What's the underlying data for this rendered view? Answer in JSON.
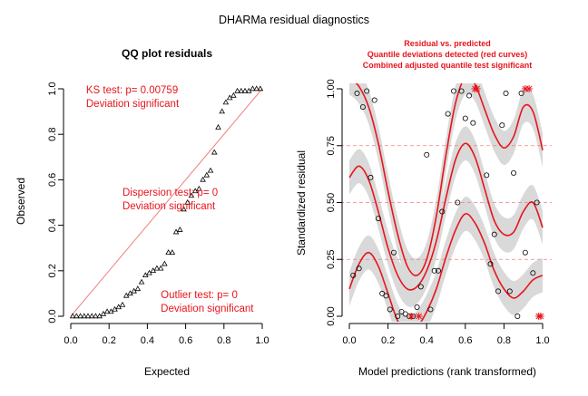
{
  "main_title": "DHARMa residual diagnostics",
  "colors": {
    "red": "#E8141B",
    "band": "#D9D9D9",
    "ref": "#F08080",
    "axis": "#000000"
  },
  "chart_data": [
    {
      "type": "scatter",
      "title": "QQ plot residuals",
      "xlabel": "Expected",
      "ylabel": "Observed",
      "xlim": [
        0,
        1
      ],
      "ylim": [
        0,
        1
      ],
      "xticks": [
        "0.0",
        "0.2",
        "0.4",
        "0.6",
        "0.8",
        "1.0"
      ],
      "yticks": [
        "0.0",
        "0.2",
        "0.4",
        "0.6",
        "0.8",
        "1.0"
      ],
      "marker": "triangle",
      "reference_line": "y = x",
      "x": [
        0.01,
        0.03,
        0.05,
        0.07,
        0.09,
        0.11,
        0.13,
        0.15,
        0.17,
        0.19,
        0.21,
        0.23,
        0.25,
        0.27,
        0.29,
        0.31,
        0.33,
        0.35,
        0.37,
        0.39,
        0.41,
        0.43,
        0.45,
        0.47,
        0.49,
        0.51,
        0.53,
        0.55,
        0.57,
        0.59,
        0.61,
        0.63,
        0.65,
        0.67,
        0.69,
        0.71,
        0.73,
        0.75,
        0.77,
        0.79,
        0.81,
        0.83,
        0.85,
        0.87,
        0.89,
        0.91,
        0.93,
        0.95,
        0.97,
        0.99
      ],
      "y": [
        0.0,
        0.0,
        0.0,
        0.0,
        0.0,
        0.0,
        0.0,
        0.0,
        0.01,
        0.02,
        0.02,
        0.03,
        0.04,
        0.05,
        0.09,
        0.1,
        0.11,
        0.12,
        0.15,
        0.18,
        0.19,
        0.2,
        0.21,
        0.21,
        0.23,
        0.28,
        0.28,
        0.37,
        0.38,
        0.47,
        0.5,
        0.53,
        0.55,
        0.56,
        0.6,
        0.62,
        0.64,
        0.72,
        0.83,
        0.9,
        0.94,
        0.96,
        0.97,
        0.99,
        0.99,
        0.99,
        0.99,
        1.0,
        1.0,
        1.0
      ],
      "annotations": [
        {
          "lines": [
            "KS test: p= 0.00759",
            "Deviation  significant"
          ],
          "x": 0.08,
          "y": 0.98
        },
        {
          "lines": [
            "Dispersion test: p= 0",
            "Deviation  significant"
          ],
          "x": 0.27,
          "y": 0.53
        },
        {
          "lines": [
            "Outlier test: p= 0",
            "Deviation  significant"
          ],
          "x": 0.47,
          "y": 0.08
        }
      ]
    },
    {
      "type": "scatter",
      "title_lines": [
        "Residual vs. predicted",
        "Quantile deviations detected (red curves)",
        "Combined adjusted quantile test significant"
      ],
      "xlabel": "Model predictions (rank transformed)",
      "ylabel": "Standardized residual",
      "xlim": [
        0,
        1
      ],
      "ylim": [
        0,
        1
      ],
      "xticks": [
        "0.0",
        "0.2",
        "0.4",
        "0.6",
        "0.8",
        "1.0"
      ],
      "yticks": [
        "0.00",
        "0.25",
        "0.50",
        "0.75",
        "1.00"
      ],
      "quantile_lines": [
        0.25,
        0.5,
        0.75
      ],
      "points": [
        [
          0.02,
          0.18
        ],
        [
          0.04,
          0.98
        ],
        [
          0.05,
          0.21
        ],
        [
          0.07,
          0.92
        ],
        [
          0.09,
          0.99
        ],
        [
          0.11,
          0.61
        ],
        [
          0.13,
          0.95
        ],
        [
          0.15,
          0.43
        ],
        [
          0.17,
          0.1
        ],
        [
          0.19,
          0.09
        ],
        [
          0.21,
          0.03
        ],
        [
          0.23,
          0.28
        ],
        [
          0.25,
          0.0
        ],
        [
          0.27,
          0.02
        ],
        [
          0.29,
          0.01
        ],
        [
          0.31,
          0.0
        ],
        [
          0.33,
          0.0
        ],
        [
          0.35,
          0.04
        ],
        [
          0.37,
          0.13
        ],
        [
          0.4,
          0.71
        ],
        [
          0.42,
          0.03
        ],
        [
          0.44,
          0.2
        ],
        [
          0.46,
          0.2
        ],
        [
          0.48,
          0.46
        ],
        [
          0.51,
          0.89
        ],
        [
          0.54,
          0.99
        ],
        [
          0.56,
          0.5
        ],
        [
          0.58,
          0.99
        ],
        [
          0.6,
          0.87
        ],
        [
          0.62,
          0.97
        ],
        [
          0.64,
          0.85
        ],
        [
          0.71,
          0.62
        ],
        [
          0.73,
          0.23
        ],
        [
          0.75,
          0.36
        ],
        [
          0.77,
          0.11
        ],
        [
          0.79,
          0.84
        ],
        [
          0.81,
          0.98
        ],
        [
          0.83,
          0.11
        ],
        [
          0.85,
          0.63
        ],
        [
          0.87,
          0.0
        ],
        [
          0.89,
          0.98
        ],
        [
          0.91,
          0.28
        ],
        [
          0.95,
          0.19
        ],
        [
          0.97,
          0.5
        ]
      ],
      "outliers": [
        [
          0.32,
          0.0
        ],
        [
          0.36,
          0.0
        ],
        [
          0.65,
          1.0
        ],
        [
          0.66,
          1.0
        ],
        [
          0.91,
          1.0
        ],
        [
          0.93,
          1.0
        ],
        [
          0.98,
          0.0
        ],
        [
          0.99,
          0.0
        ]
      ],
      "quantile_curves": [
        {
          "q": 0.25,
          "x": [
            0,
            0.05,
            0.1,
            0.15,
            0.2,
            0.25,
            0.3,
            0.35,
            0.4,
            0.45,
            0.5,
            0.55,
            0.6,
            0.65,
            0.7,
            0.75,
            0.8,
            0.85,
            0.9,
            0.95,
            1.0
          ],
          "y": [
            0.12,
            0.23,
            0.28,
            0.22,
            0.1,
            -0.02,
            -0.08,
            -0.05,
            0.02,
            0.12,
            0.26,
            0.38,
            0.45,
            0.41,
            0.32,
            0.2,
            0.12,
            0.08,
            0.11,
            0.16,
            0.18
          ]
        },
        {
          "q": 0.5,
          "x": [
            0,
            0.05,
            0.1,
            0.15,
            0.2,
            0.25,
            0.3,
            0.35,
            0.4,
            0.45,
            0.5,
            0.55,
            0.6,
            0.65,
            0.7,
            0.75,
            0.8,
            0.85,
            0.9,
            0.95,
            1.0
          ],
          "y": [
            0.61,
            0.66,
            0.6,
            0.46,
            0.3,
            0.18,
            0.12,
            0.13,
            0.2,
            0.33,
            0.52,
            0.69,
            0.76,
            0.7,
            0.56,
            0.42,
            0.36,
            0.37,
            0.46,
            0.5,
            0.39
          ]
        },
        {
          "q": 0.75,
          "x": [
            0,
            0.05,
            0.1,
            0.15,
            0.2,
            0.25,
            0.3,
            0.35,
            0.4,
            0.45,
            0.5,
            0.55,
            0.6,
            0.65,
            0.7,
            0.75,
            0.8,
            0.85,
            0.9,
            0.95,
            1.0
          ],
          "y": [
            1.05,
            1.01,
            0.92,
            0.76,
            0.55,
            0.36,
            0.22,
            0.18,
            0.25,
            0.44,
            0.71,
            0.94,
            1.05,
            1.02,
            0.91,
            0.8,
            0.74,
            0.79,
            0.92,
            0.9,
            0.73
          ]
        }
      ],
      "band_halfwidth": 0.075
    }
  ]
}
